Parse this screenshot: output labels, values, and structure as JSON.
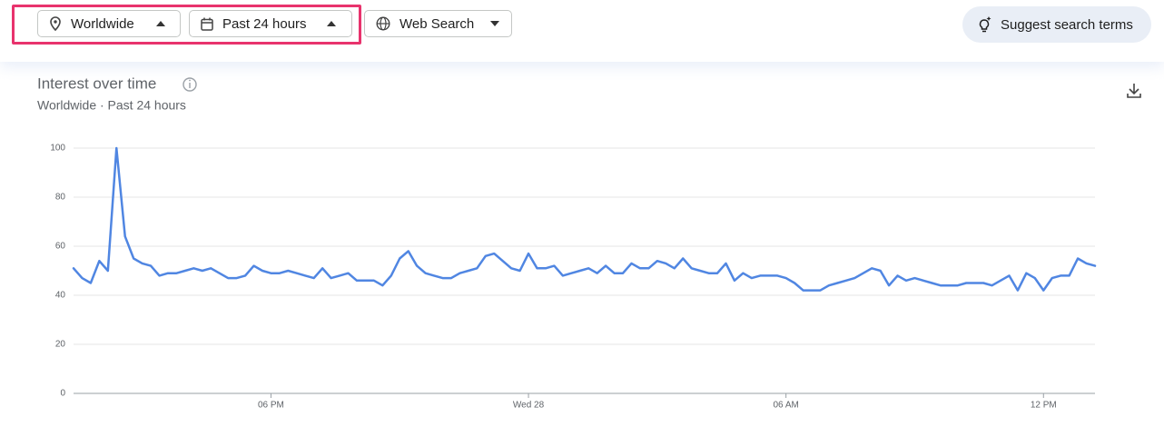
{
  "toolbar": {
    "location": "Worldwide",
    "time_range": "Past 24 hours",
    "search_type": "Web Search",
    "suggest": "Suggest search terms"
  },
  "chart_data": {
    "type": "line",
    "title": "Interest over time",
    "subtitle": "Worldwide · Past 24 hours",
    "categories": [
      null,
      null,
      null,
      null,
      null,
      null,
      null,
      null,
      null,
      null,
      null,
      null,
      null,
      null,
      null,
      null,
      null,
      null,
      null,
      null,
      null,
      null,
      null,
      "06 PM",
      null,
      null,
      null,
      null,
      null,
      null,
      null,
      null,
      null,
      null,
      null,
      null,
      null,
      null,
      null,
      null,
      null,
      null,
      null,
      null,
      null,
      null,
      null,
      null,
      null,
      null,
      null,
      null,
      null,
      "Wed 28",
      null,
      null,
      null,
      null,
      null,
      null,
      null,
      null,
      null,
      null,
      null,
      null,
      null,
      null,
      null,
      null,
      null,
      null,
      null,
      null,
      null,
      null,
      null,
      null,
      null,
      null,
      null,
      null,
      null,
      "06 AM",
      null,
      null,
      null,
      null,
      null,
      null,
      null,
      null,
      null,
      null,
      null,
      null,
      null,
      null,
      null,
      null,
      null,
      null,
      null,
      null,
      null,
      null,
      null,
      null,
      null,
      null,
      null,
      null,
      null,
      "12 PM",
      null,
      null,
      null,
      null,
      null,
      null
    ],
    "series": [
      {
        "name": "Interest",
        "color": "#5086e2",
        "values": [
          51,
          47,
          45,
          54,
          50,
          100,
          64,
          55,
          53,
          52,
          48,
          49,
          49,
          50,
          51,
          50,
          51,
          49,
          47,
          47,
          48,
          52,
          50,
          49,
          49,
          50,
          49,
          48,
          47,
          51,
          47,
          48,
          49,
          46,
          46,
          46,
          44,
          48,
          55,
          58,
          52,
          49,
          48,
          47,
          47,
          49,
          50,
          51,
          56,
          57,
          54,
          51,
          50,
          57,
          51,
          51,
          52,
          48,
          49,
          50,
          51,
          49,
          52,
          49,
          49,
          53,
          51,
          51,
          54,
          53,
          51,
          55,
          51,
          50,
          49,
          49,
          53,
          46,
          49,
          47,
          48,
          48,
          48,
          47,
          45,
          42,
          42,
          42,
          44,
          45,
          46,
          47,
          49,
          51,
          50,
          44,
          48,
          46,
          47,
          46,
          45,
          44,
          44,
          44,
          45,
          45,
          45,
          44,
          46,
          48,
          42,
          49,
          47,
          42,
          47,
          48,
          48,
          55,
          53,
          52
        ]
      }
    ],
    "ylim": [
      0,
      100
    ],
    "yticks": [
      0,
      20,
      40,
      60,
      80,
      100
    ],
    "grid": true
  }
}
